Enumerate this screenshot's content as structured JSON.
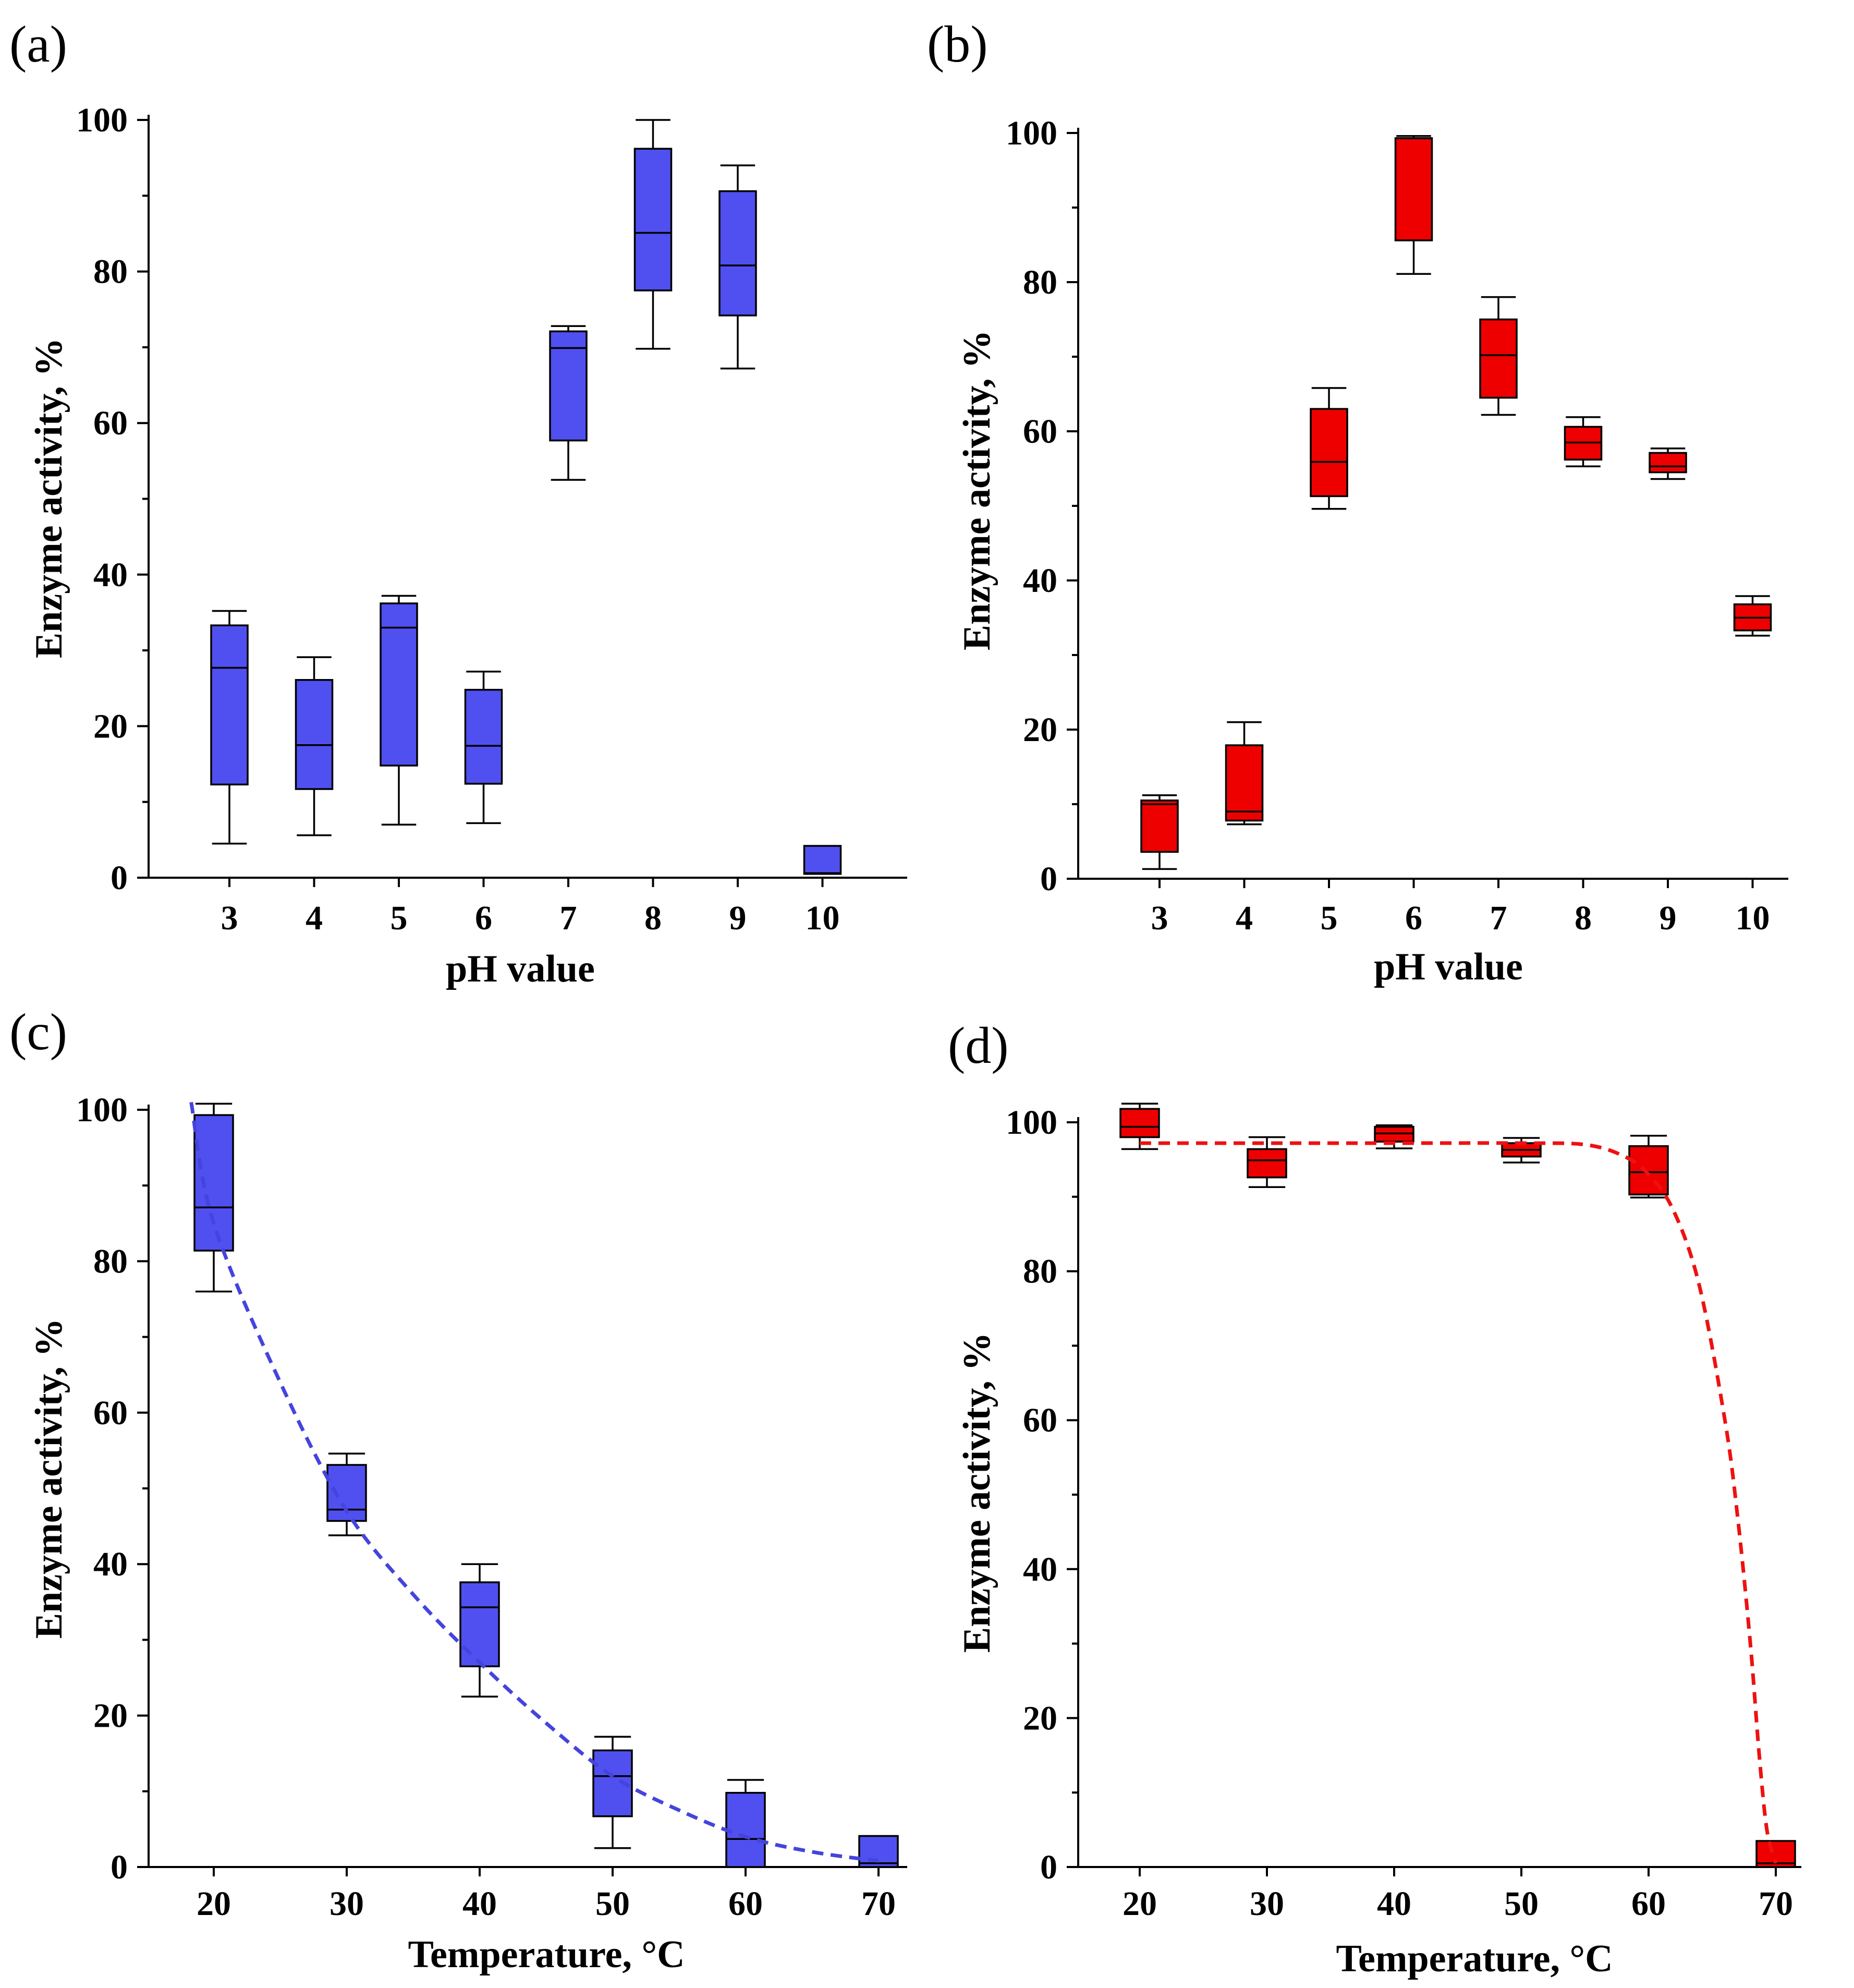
{
  "colors": {
    "blue": "#5050f0",
    "red": "#ee0000",
    "blue_fit": "#4444dd",
    "red_fit": "#ee1111"
  },
  "chart_data": [
    {
      "panel": "(a)",
      "type": "box",
      "xlabel": "pH value",
      "ylabel": "Enzyme activity, %",
      "ylim": [
        0,
        100
      ],
      "yticks": [
        0,
        20,
        40,
        60,
        80,
        100
      ],
      "categories": [
        "3",
        "4",
        "5",
        "6",
        "7",
        "8",
        "9",
        "10"
      ],
      "color": "blue",
      "boxes": [
        {
          "min": 4.5,
          "q1": 12.3,
          "median": 27.7,
          "q3": 33.3,
          "max": 35.2
        },
        {
          "min": 5.6,
          "q1": 11.7,
          "median": 17.5,
          "q3": 26.1,
          "max": 29.1
        },
        {
          "min": 7.0,
          "q1": 14.8,
          "median": 33.0,
          "q3": 36.2,
          "max": 37.2
        },
        {
          "min": 7.2,
          "q1": 12.4,
          "median": 17.4,
          "q3": 24.8,
          "max": 27.2
        },
        {
          "min": 52.5,
          "q1": 57.7,
          "median": 69.9,
          "q3": 72.1,
          "max": 72.8
        },
        {
          "min": 69.8,
          "q1": 77.5,
          "median": 85.1,
          "q3": 96.2,
          "max": 100.0
        },
        {
          "min": 67.2,
          "q1": 74.2,
          "median": 80.8,
          "q3": 90.6,
          "max": 94.0
        },
        {
          "min": 0.5,
          "q1": 0.5,
          "median": 0.6,
          "q3": 4.2,
          "max": 4.2
        }
      ]
    },
    {
      "panel": "(b)",
      "type": "box",
      "xlabel": "pH value",
      "ylabel": "Enzyme activity, %",
      "ylim": [
        0,
        100
      ],
      "yticks": [
        0,
        20,
        40,
        60,
        80,
        100
      ],
      "categories": [
        "3",
        "4",
        "5",
        "6",
        "7",
        "8",
        "9",
        "10"
      ],
      "color": "red",
      "boxes": [
        {
          "min": 1.3,
          "q1": 3.6,
          "median": 10.0,
          "q3": 10.5,
          "max": 11.2
        },
        {
          "min": 7.3,
          "q1": 7.8,
          "median": 9.0,
          "q3": 17.9,
          "max": 21.0
        },
        {
          "min": 49.6,
          "q1": 51.3,
          "median": 55.9,
          "q3": 63.0,
          "max": 65.8
        },
        {
          "min": 81.1,
          "q1": 85.6,
          "median": 99.3,
          "q3": 99.3,
          "max": 99.6
        },
        {
          "min": 62.2,
          "q1": 64.5,
          "median": 70.2,
          "q3": 75.0,
          "max": 78.0
        },
        {
          "min": 55.3,
          "q1": 56.2,
          "median": 58.5,
          "q3": 60.6,
          "max": 61.9
        },
        {
          "min": 53.6,
          "q1": 54.5,
          "median": 55.3,
          "q3": 57.1,
          "max": 57.7
        },
        {
          "min": 32.6,
          "q1": 33.3,
          "median": 35.0,
          "q3": 36.8,
          "max": 37.9
        }
      ]
    },
    {
      "panel": "(c)",
      "type": "box",
      "xlabel": "Temperature, °C",
      "ylabel": "Enzyme activity, %",
      "ylim": [
        0,
        100
      ],
      "yticks": [
        0,
        20,
        40,
        60,
        80,
        100
      ],
      "categories": [
        "20",
        "30",
        "40",
        "50",
        "60",
        "70"
      ],
      "color": "blue",
      "boxes": [
        {
          "min": 76.0,
          "q1": 81.4,
          "median": 87.1,
          "q3": 99.3,
          "max": 100.8
        },
        {
          "min": 43.8,
          "q1": 45.7,
          "median": 47.2,
          "q3": 53.1,
          "max": 54.6
        },
        {
          "min": 22.5,
          "q1": 26.5,
          "median": 34.3,
          "q3": 37.6,
          "max": 40.0
        },
        {
          "min": 2.5,
          "q1": 6.7,
          "median": 12.0,
          "q3": 15.4,
          "max": 17.2
        },
        {
          "min": 0.0,
          "q1": 0.0,
          "median": 3.7,
          "q3": 9.8,
          "max": 11.5
        },
        {
          "min": 0.0,
          "q1": 0.0,
          "median": 0.5,
          "q3": 4.1,
          "max": 4.1
        }
      ],
      "fit": {
        "color": "blue_fit",
        "x": [
          18.3,
          20,
          25,
          30,
          35,
          40,
          45,
          50,
          55,
          60,
          65,
          70
        ],
        "y": [
          101,
          85,
          64,
          47,
          36,
          27,
          19,
          12,
          7.5,
          4,
          2,
          0.8
        ]
      }
    },
    {
      "panel": "(d)",
      "type": "box",
      "xlabel": "Temperature, °C",
      "ylabel": "Enzyme activity, %",
      "ylim": [
        0,
        100
      ],
      "yticks": [
        0,
        20,
        40,
        60,
        80,
        100
      ],
      "categories": [
        "20",
        "30",
        "40",
        "50",
        "60",
        "70"
      ],
      "color": "red",
      "boxes": [
        {
          "min": 96.4,
          "q1": 98.0,
          "median": 99.4,
          "q3": 101.8,
          "max": 102.5
        },
        {
          "min": 91.3,
          "q1": 92.6,
          "median": 94.9,
          "q3": 96.4,
          "max": 98.0
        },
        {
          "min": 96.5,
          "q1": 97.4,
          "median": 98.5,
          "q3": 99.4,
          "max": 99.6
        },
        {
          "min": 94.6,
          "q1": 95.4,
          "median": 96.3,
          "q3": 97.2,
          "max": 97.9
        },
        {
          "min": 89.9,
          "q1": 90.3,
          "median": 93.3,
          "q3": 96.8,
          "max": 98.2
        },
        {
          "min": 0.0,
          "q1": 0.0,
          "median": 0.5,
          "q3": 3.5,
          "max": 3.5
        }
      ],
      "fit": {
        "color": "red_fit",
        "x": [
          20,
          30,
          40,
          50,
          55,
          58,
          60,
          62,
          64,
          66,
          67,
          68,
          68.7,
          69.3,
          70
        ],
        "y": [
          97.2,
          97.2,
          97.2,
          97.2,
          97,
          95.5,
          93,
          88,
          78,
          60,
          47,
          30,
          15,
          5,
          0.5
        ]
      }
    }
  ]
}
